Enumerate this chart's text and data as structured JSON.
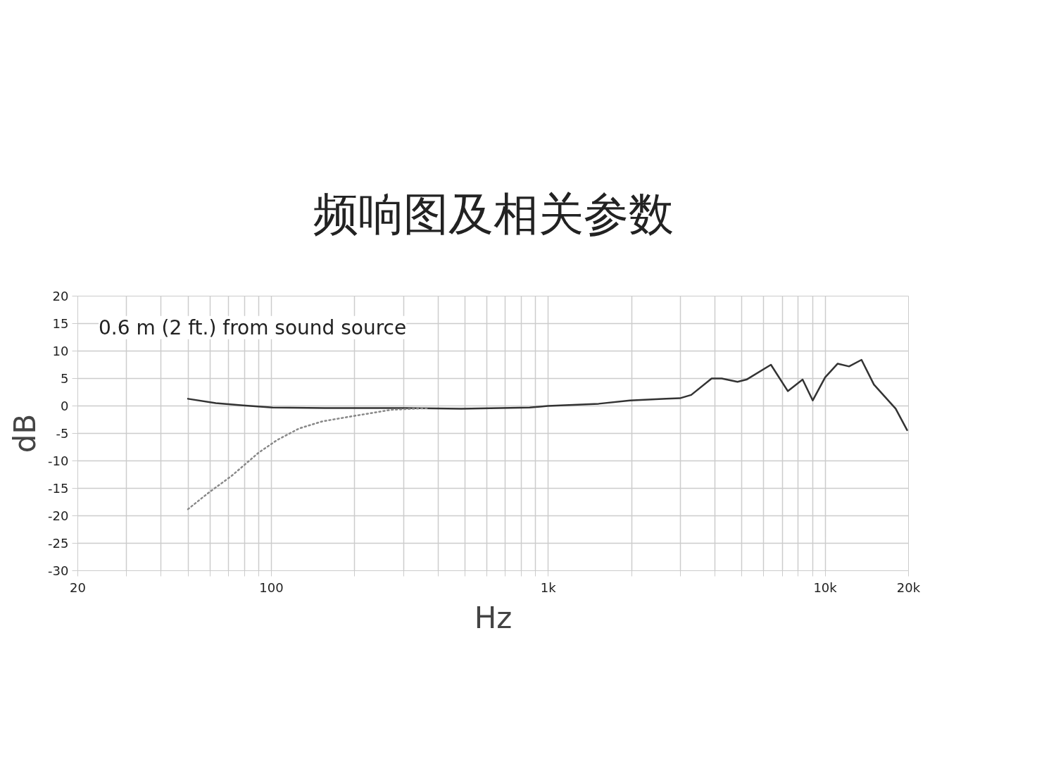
{
  "chart_data": {
    "type": "line",
    "title": "频响图及相关参数",
    "xlabel": "Hz",
    "ylabel": "dB",
    "log": "x",
    "annotations": [
      "0.6 m (2 ft.) from sound source"
    ],
    "xlim": [
      20,
      20000
    ],
    "ylim": [
      -30,
      20
    ],
    "xticks": [
      20,
      {
        "value": 30,
        "label": null
      },
      {
        "value": 40,
        "label": null
      },
      {
        "value": 50,
        "label": null
      },
      {
        "value": 60,
        "label": null
      },
      {
        "value": 70,
        "label": null
      },
      {
        "value": 80,
        "label": null
      },
      {
        "value": 90,
        "label": null
      },
      100,
      {
        "value": 200,
        "label": null
      },
      {
        "value": 300,
        "label": null
      },
      {
        "value": 400,
        "label": null
      },
      {
        "value": 500,
        "label": null
      },
      {
        "value": 600,
        "label": null
      },
      {
        "value": 700,
        "label": null
      },
      {
        "value": 800,
        "label": null
      },
      {
        "value": 900,
        "label": null
      },
      {
        "value": 1000,
        "label": "1k"
      },
      {
        "value": 2000,
        "label": null
      },
      {
        "value": 3000,
        "label": null
      },
      {
        "value": 4000,
        "label": null
      },
      {
        "value": 5000,
        "label": null
      },
      {
        "value": 6000,
        "label": null
      },
      {
        "value": 7000,
        "label": null
      },
      {
        "value": 8000,
        "label": null
      },
      {
        "value": 9000,
        "label": null
      },
      {
        "value": 10000,
        "label": "10k"
      },
      {
        "value": 20000,
        "label": "20k"
      }
    ],
    "yticks": [
      20,
      15,
      10,
      5,
      0,
      -5,
      -10,
      -15,
      -20,
      -25,
      -30
    ],
    "grid": true,
    "series": [
      {
        "color": "#333333",
        "line_style": "solid",
        "x": [
          50,
          63,
          79,
          101,
          156,
          308,
          485,
          857,
          998,
          1520,
          1972,
          2667,
          2986,
          3283,
          3891,
          4230,
          4825,
          5200,
          6370,
          7330,
          8290,
          9020,
          10000,
          11100,
          12200,
          13530,
          15000,
          17970,
          19770
        ],
        "values": [
          1.3,
          0.5,
          0.1,
          -0.3,
          -0.4,
          -0.4,
          -0.5,
          -0.3,
          0.0,
          0.4,
          1.0,
          1.3,
          1.4,
          2.0,
          5.0,
          5.0,
          4.4,
          4.8,
          7.5,
          2.7,
          4.8,
          1.0,
          5.2,
          7.7,
          7.2,
          8.4,
          3.9,
          -0.5,
          -4.4
        ]
      },
      {
        "color": "#888888",
        "line_style": "dotted",
        "x": [
          50,
          59,
          72,
          90,
          105,
          126,
          153,
          200,
          271,
          366
        ],
        "values": [
          -18.8,
          -15.9,
          -12.7,
          -8.5,
          -6.2,
          -4.1,
          -2.8,
          -1.8,
          -0.7,
          -0.4
        ]
      }
    ]
  }
}
